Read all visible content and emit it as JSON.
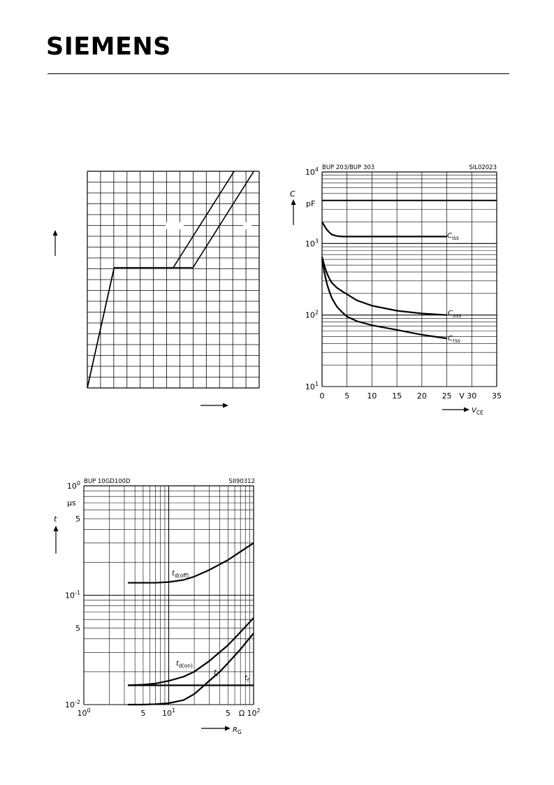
{
  "header": {
    "brand": "SIEMENS"
  },
  "chart_data": [
    {
      "type": "line",
      "id": "chart-a",
      "title": "",
      "xlabel": "",
      "ylabel": "",
      "grid": true,
      "series": [
        {
          "values": [
            [
              0,
              0
            ],
            [
              1.5,
              7.5
            ],
            [
              4.8,
              7.5
            ],
            [
              8.2,
              13.5
            ]
          ]
        },
        {
          "values": [
            [
              0,
              0
            ],
            [
              1.5,
              7.5
            ],
            [
              5.9,
              7.5
            ],
            [
              9.3,
              13.5
            ]
          ]
        }
      ],
      "xlim": [
        0,
        9.6
      ],
      "ylim": [
        0,
        13.5
      ]
    },
    {
      "type": "line",
      "id": "chart-b",
      "title_left": "BUP 203/BUP 303",
      "title_right": "SIL02023",
      "ylabel": "C",
      "yunit": "pF",
      "xlabel": "V",
      "xlabel_sub": "CE",
      "xunit": "V",
      "xscale": "linear",
      "yscale": "log",
      "xlim": [
        0,
        35
      ],
      "ylim": [
        10,
        10000
      ],
      "xticks": [
        "0",
        "5",
        "10",
        "15",
        "20",
        "25",
        "30",
        "35"
      ],
      "yticks": [
        {
          "base": "10",
          "exp": "1"
        },
        {
          "base": "10",
          "exp": "2"
        },
        {
          "base": "10",
          "exp": "3"
        },
        {
          "base": "10",
          "exp": "4"
        }
      ],
      "series": [
        {
          "name": "C",
          "sub": "iss",
          "x": [
            0,
            0.5,
            1,
            1.5,
            2,
            3,
            4,
            5,
            10,
            15,
            20,
            25
          ],
          "y": [
            2000,
            1750,
            1550,
            1420,
            1330,
            1270,
            1250,
            1250,
            1250,
            1250,
            1250,
            1250
          ]
        },
        {
          "name": "C",
          "sub": "oss",
          "x": [
            0,
            0.5,
            1,
            1.5,
            2,
            3,
            4,
            5,
            7,
            10,
            15,
            20,
            25
          ],
          "y": [
            650,
            480,
            380,
            320,
            280,
            240,
            215,
            195,
            160,
            135,
            115,
            105,
            100
          ]
        },
        {
          "name": "C",
          "sub": "rss",
          "x": [
            0,
            0.5,
            1,
            1.5,
            2,
            3,
            4,
            5,
            7,
            10,
            15,
            20,
            25
          ],
          "y": [
            600,
            380,
            270,
            210,
            170,
            130,
            110,
            95,
            82,
            72,
            62,
            53,
            47
          ]
        }
      ],
      "reference_line": {
        "y": 4000
      }
    },
    {
      "type": "line",
      "id": "chart-c",
      "title_left": "BUP 10GD100D",
      "title_right": "SII90312",
      "ylabel": "t",
      "yunit": "µs",
      "xlabel": "R",
      "xlabel_sub": "G",
      "xunit": "Ω",
      "xscale": "log",
      "yscale": "log",
      "xlim": [
        1,
        100
      ],
      "ylim": [
        0.01,
        1
      ],
      "xticks": [
        {
          "value": 1,
          "label": "10",
          "exp": "0"
        },
        {
          "value": 5,
          "label": "5",
          "exp": ""
        },
        {
          "value": 10,
          "label": "10",
          "exp": "1"
        },
        {
          "value": 50,
          "label": "5",
          "exp": ""
        },
        {
          "value": 100,
          "label": "10",
          "exp": "2"
        }
      ],
      "yticks": [
        {
          "value": 1,
          "label": "10",
          "exp": "0"
        },
        {
          "value": 0.5,
          "label": "5",
          "exp": ""
        },
        {
          "value": 0.1,
          "label": "10",
          "exp": "-1"
        },
        {
          "value": 0.05,
          "label": "5",
          "exp": ""
        },
        {
          "value": 0.01,
          "label": "10",
          "exp": "-2"
        }
      ],
      "series": [
        {
          "name": "t",
          "sub": "d(off)",
          "x": [
            3.3,
            5,
            7,
            10,
            15,
            20,
            30,
            50,
            70,
            100
          ],
          "y": [
            0.13,
            0.13,
            0.13,
            0.132,
            0.138,
            0.148,
            0.17,
            0.21,
            0.25,
            0.3
          ]
        },
        {
          "name": "t",
          "sub": "d(on)",
          "x": [
            3.3,
            5,
            7,
            10,
            15,
            20,
            30,
            50,
            70,
            100
          ],
          "y": [
            0.015,
            0.0152,
            0.0156,
            0.0165,
            0.018,
            0.02,
            0.025,
            0.035,
            0.046,
            0.062
          ]
        },
        {
          "name": "t",
          "sub": "r",
          "x": [
            3.3,
            5,
            7,
            10,
            12,
            15,
            20,
            25,
            30,
            40,
            50,
            70,
            100
          ],
          "y": [
            0.01,
            0.01,
            0.0101,
            0.0103,
            0.0106,
            0.011,
            0.0125,
            0.0145,
            0.0165,
            0.02,
            0.024,
            0.032,
            0.045
          ]
        },
        {
          "name": "t",
          "sub": "f",
          "x": [
            3.3,
            100
          ],
          "y": [
            0.015,
            0.015
          ]
        }
      ]
    }
  ]
}
